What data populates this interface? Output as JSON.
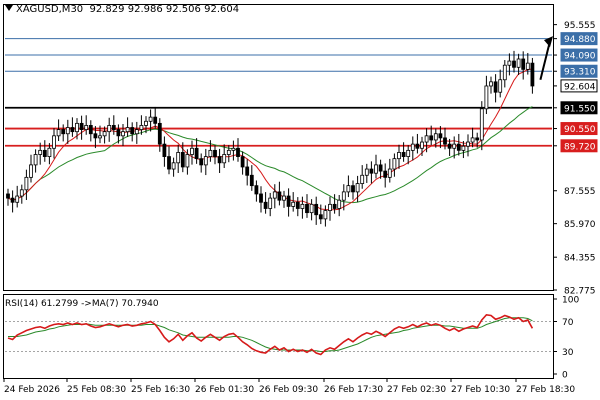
{
  "header": {
    "symbol": "XAGUSD,M30",
    "open": "92.829",
    "high": "92.986",
    "low": "92.506",
    "close": "92.604"
  },
  "rsi": {
    "label": "RSI(14) 61.2799",
    "ma_label": "->MA(7) 70.7940",
    "axis_labels": [
      "100",
      "70",
      "30",
      "0"
    ]
  },
  "colors": {
    "bull": "#000000",
    "bear": "#000000",
    "ma_fast": "#d61a1a",
    "ma_slow": "#2a8a2a",
    "level_blue": "#3b6fa8",
    "level_black": "#000000",
    "level_red": "#d81e1e",
    "arrow": "#000000"
  },
  "price_axis": [
    "95.555",
    "94.880",
    "94.090",
    "93.310",
    "92.604",
    "91.550",
    "90.550",
    "89.720",
    "87.555",
    "85.970",
    "84.355",
    "82.775"
  ],
  "levels": [
    {
      "label": "94.880",
      "color": "blue"
    },
    {
      "label": "94.090",
      "color": "blue"
    },
    {
      "label": "93.310",
      "color": "blue"
    },
    {
      "label": "91.550",
      "color": "black"
    },
    {
      "label": "90.550",
      "color": "red"
    },
    {
      "label": "89.720",
      "color": "red"
    }
  ],
  "current_price": "92.604",
  "time_axis": [
    "24 Feb 2026",
    "25 Feb 08:30",
    "25 Feb 16:30",
    "26 Feb 01:30",
    "26 Feb 09:30",
    "26 Feb 17:30",
    "27 Feb 02:30",
    "27 Feb 10:30",
    "27 Feb 18:30"
  ],
  "chart_data": {
    "type": "candlestick",
    "price_range": [
      82.775,
      96.5
    ],
    "rsi_range": [
      0,
      100
    ],
    "closes": [
      87.2,
      87.0,
      87.3,
      87.6,
      88.2,
      88.8,
      89.3,
      89.5,
      89.2,
      89.6,
      90.2,
      90.5,
      90.3,
      90.6,
      90.4,
      90.8,
      90.5,
      90.7,
      90.3,
      90.1,
      90.2,
      90.4,
      90.7,
      90.5,
      90.2,
      90.4,
      90.6,
      90.3,
      90.5,
      90.7,
      90.9,
      91.1,
      90.8,
      89.8,
      89.2,
      88.6,
      88.9,
      89.4,
      88.7,
      89.3,
      89.6,
      89.1,
      88.8,
      89.2,
      89.5,
      89.2,
      88.9,
      89.3,
      89.5,
      89.6,
      89.2,
      88.7,
      88.3,
      87.8,
      87.4,
      87.0,
      86.7,
      87.2,
      87.5,
      87.1,
      87.3,
      86.8,
      87.0,
      86.7,
      86.9,
      86.5,
      86.9,
      86.4,
      86.2,
      86.6,
      86.9,
      86.7,
      87.1,
      87.5,
      87.8,
      87.5,
      87.9,
      88.3,
      88.6,
      88.4,
      88.8,
      88.5,
      88.2,
      88.6,
      89.1,
      89.4,
      89.2,
      89.5,
      89.8,
      89.6,
      89.9,
      90.2,
      90.0,
      90.3,
      90.1,
      89.8,
      89.6,
      89.8,
      89.5,
      89.7,
      89.9,
      90.1,
      90.0,
      91.5,
      92.6,
      92.8,
      92.3,
      92.9,
      93.6,
      93.8,
      93.5,
      93.9,
      93.4,
      93.7,
      92.6
    ],
    "rsi": [
      48,
      46,
      52,
      55,
      58,
      60,
      62,
      63,
      61,
      64,
      66,
      67,
      66,
      68,
      66,
      68,
      66,
      67,
      64,
      62,
      63,
      65,
      67,
      65,
      63,
      65,
      66,
      64,
      65,
      67,
      68,
      70,
      66,
      58,
      49,
      43,
      47,
      53,
      45,
      51,
      55,
      48,
      44,
      49,
      53,
      49,
      45,
      50,
      53,
      54,
      49,
      43,
      39,
      34,
      31,
      29,
      28,
      33,
      37,
      32,
      35,
      30,
      33,
      30,
      32,
      29,
      33,
      28,
      26,
      32,
      35,
      33,
      38,
      43,
      47,
      43,
      48,
      52,
      55,
      53,
      57,
      54,
      50,
      55,
      60,
      63,
      61,
      63,
      66,
      63,
      66,
      68,
      65,
      67,
      65,
      61,
      58,
      61,
      57,
      60,
      62,
      64,
      62,
      72,
      79,
      78,
      73,
      75,
      78,
      76,
      73,
      75,
      70,
      72,
      61
    ],
    "rsi_ma": [
      50,
      50,
      50,
      51,
      52,
      54,
      56,
      57,
      58,
      60,
      61,
      63,
      64,
      65,
      66,
      66,
      66,
      67,
      66,
      65,
      65,
      65,
      65,
      65,
      65,
      65,
      65,
      65,
      65,
      65,
      66,
      66,
      66,
      64,
      62,
      59,
      57,
      55,
      52,
      51,
      50,
      49,
      49,
      49,
      49,
      49,
      49,
      49,
      49,
      50,
      50,
      49,
      47,
      45,
      42,
      39,
      36,
      34,
      33,
      32,
      32,
      32,
      32,
      32,
      32,
      31,
      31,
      31,
      30,
      30,
      31,
      31,
      32,
      34,
      36,
      38,
      40,
      43,
      46,
      49,
      51,
      52,
      53,
      54,
      55,
      56,
      58,
      59,
      61,
      62,
      63,
      64,
      65,
      65,
      65,
      64,
      64,
      63,
      62,
      61,
      61,
      61,
      61,
      63,
      66,
      68,
      70,
      72,
      74,
      75,
      75,
      75,
      75,
      74,
      71
    ]
  }
}
